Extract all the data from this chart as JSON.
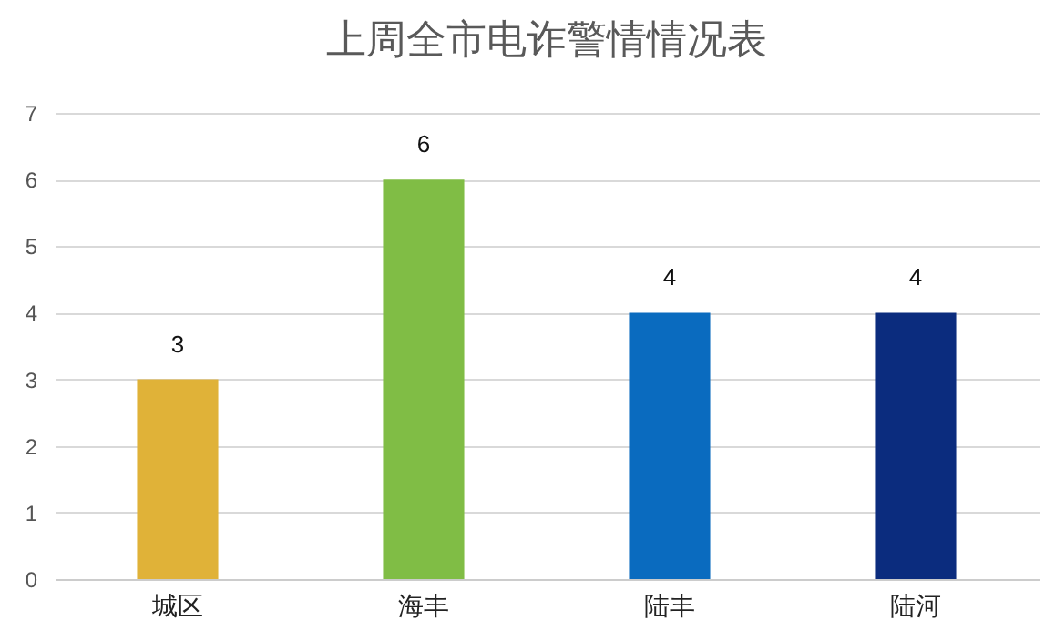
{
  "chart_data": {
    "type": "bar",
    "title": "上周全市电诈警情情况表",
    "categories": [
      "城区",
      "海丰",
      "陆丰",
      "陆河"
    ],
    "values": [
      3,
      6,
      4,
      4
    ],
    "colors": [
      "#e0b238",
      "#80bd45",
      "#0a6bbf",
      "#0b2c7e"
    ],
    "ylim": [
      0,
      7
    ],
    "yticks": [
      0,
      1,
      2,
      3,
      4,
      5,
      6,
      7
    ],
    "grid": "y",
    "data_labels": true
  }
}
